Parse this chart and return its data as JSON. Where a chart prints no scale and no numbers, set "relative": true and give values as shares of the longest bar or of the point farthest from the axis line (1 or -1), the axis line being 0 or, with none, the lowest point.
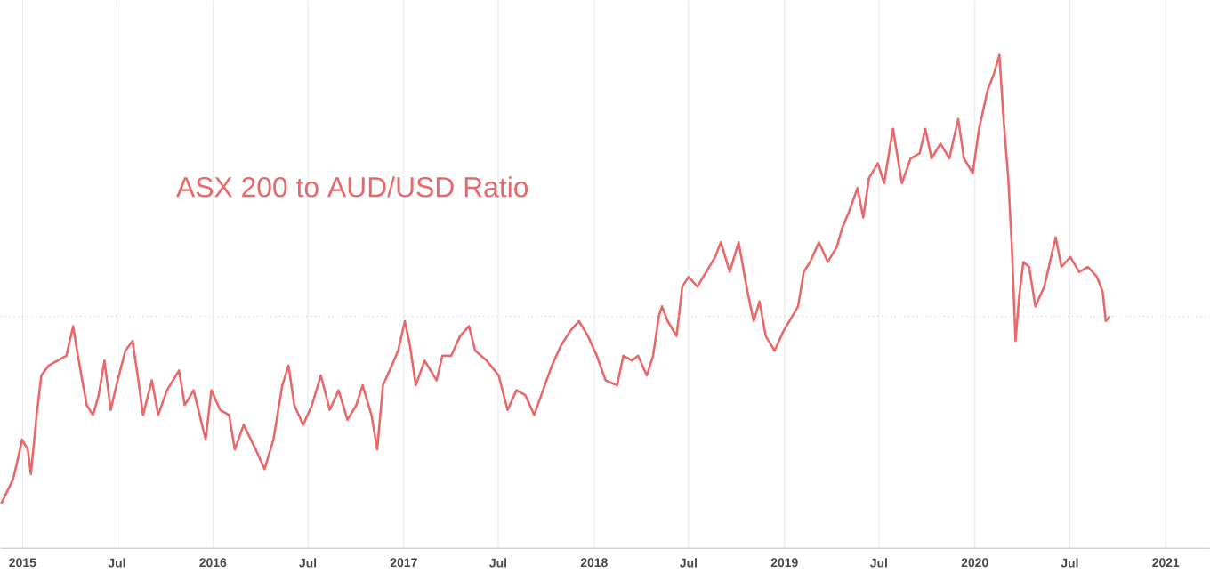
{
  "chart_data": {
    "type": "line",
    "title": "ASX 200 to AUD/USD Ratio",
    "relative": true,
    "grid": "x",
    "marker": "none",
    "line_style": "solid",
    "xlim": [
      "2014-11-20",
      "2021-03-26"
    ],
    "xticks": [
      {
        "value": "2015-01-01",
        "label": "2015"
      },
      {
        "value": "2015-07-01",
        "label": "Jul"
      },
      {
        "value": "2016-01-01",
        "label": "2016"
      },
      {
        "value": "2016-07-01",
        "label": "Jul"
      },
      {
        "value": "2017-01-01",
        "label": "2017"
      },
      {
        "value": "2017-07-01",
        "label": "Jul"
      },
      {
        "value": "2018-01-01",
        "label": "2018"
      },
      {
        "value": "2018-07-01",
        "label": "Jul"
      },
      {
        "value": "2019-01-01",
        "label": "2019"
      },
      {
        "value": "2019-07-01",
        "label": "Jul"
      },
      {
        "value": "2020-01-01",
        "label": "2020"
      },
      {
        "value": "2020-07-01",
        "label": "Jul"
      },
      {
        "value": "2021-01-01",
        "label": "2021"
      }
    ],
    "ref_lines": [
      {
        "axis": "y",
        "value": 0.47,
        "color": "#f4b4b5",
        "line_style": "dotted"
      }
    ],
    "series": [
      {
        "color": "#e8696b",
        "x": [
          "2014-11-21",
          "2014-12-14",
          "2014-12-25",
          "2014-12-31",
          "2015-01-11",
          "2015-01-17",
          "2015-01-28",
          "2015-02-06",
          "2015-02-20",
          "2015-03-09",
          "2015-03-26",
          "2015-04-08",
          "2015-04-17",
          "2015-05-04",
          "2015-05-16",
          "2015-05-27",
          "2015-06-07",
          "2015-06-19",
          "2015-06-30",
          "2015-07-17",
          "2015-07-31",
          "2015-08-11",
          "2015-08-20",
          "2015-09-06",
          "2015-09-18",
          "2015-10-05",
          "2015-10-28",
          "2015-11-08",
          "2015-11-25",
          "2015-12-18",
          "2015-12-29",
          "2016-01-15",
          "2016-02-01",
          "2016-02-12",
          "2016-02-29",
          "2016-03-23",
          "2016-04-09",
          "2016-04-26",
          "2016-05-13",
          "2016-05-25",
          "2016-06-05",
          "2016-06-22",
          "2016-07-09",
          "2016-07-26",
          "2016-08-12",
          "2016-08-29",
          "2016-09-15",
          "2016-10-02",
          "2016-10-14",
          "2016-10-31",
          "2016-11-11",
          "2016-11-22",
          "2016-12-09",
          "2016-12-21",
          "2017-01-03",
          "2017-01-13",
          "2017-01-24",
          "2017-02-10",
          "2017-03-05",
          "2017-03-16",
          "2017-04-02",
          "2017-04-19",
          "2017-05-06",
          "2017-05-18",
          "2017-06-09",
          "2017-07-02",
          "2017-07-19",
          "2017-08-05",
          "2017-08-22",
          "2017-09-08",
          "2017-09-25",
          "2017-10-12",
          "2017-10-29",
          "2017-11-16",
          "2017-12-03",
          "2017-12-20",
          "2018-01-06",
          "2018-01-23",
          "2018-02-14",
          "2018-02-26",
          "2018-03-15",
          "2018-03-26",
          "2018-04-12",
          "2018-04-24",
          "2018-05-05",
          "2018-05-11",
          "2018-05-22",
          "2018-06-08",
          "2018-06-19",
          "2018-07-01",
          "2018-07-18",
          "2018-08-04",
          "2018-08-21",
          "2018-09-01",
          "2018-09-18",
          "2018-10-05",
          "2018-10-22",
          "2018-11-03",
          "2018-11-14",
          "2018-11-26",
          "2018-12-13",
          "2018-12-30",
          "2019-01-16",
          "2019-01-27",
          "2019-02-07",
          "2019-02-19",
          "2019-03-08",
          "2019-03-25",
          "2019-04-11",
          "2019-04-22",
          "2019-05-04",
          "2019-05-21",
          "2019-06-01",
          "2019-06-12",
          "2019-06-29",
          "2019-07-11",
          "2019-07-28",
          "2019-08-14",
          "2019-08-31",
          "2019-09-17",
          "2019-09-28",
          "2019-10-10",
          "2019-10-27",
          "2019-11-13",
          "2019-11-30",
          "2019-12-11",
          "2019-12-28",
          "2020-01-09",
          "2020-01-26",
          "2020-02-06",
          "2020-02-17",
          "2020-02-25",
          "2020-03-05",
          "2020-03-12",
          "2020-03-19",
          "2020-03-26",
          "2020-04-03",
          "2020-04-14",
          "2020-04-26",
          "2020-05-13",
          "2020-05-24",
          "2020-06-04",
          "2020-06-15",
          "2020-07-02",
          "2020-07-19",
          "2020-08-05",
          "2020-08-22",
          "2020-09-02",
          "2020-09-08",
          "2020-09-16"
        ],
        "values": [
          0.09,
          0.14,
          0.19,
          0.22,
          0.2,
          0.15,
          0.27,
          0.35,
          0.37,
          0.38,
          0.39,
          0.45,
          0.39,
          0.29,
          0.27,
          0.31,
          0.38,
          0.28,
          0.33,
          0.4,
          0.42,
          0.34,
          0.27,
          0.34,
          0.27,
          0.32,
          0.36,
          0.29,
          0.32,
          0.22,
          0.32,
          0.28,
          0.27,
          0.2,
          0.25,
          0.2,
          0.16,
          0.22,
          0.33,
          0.37,
          0.29,
          0.25,
          0.29,
          0.35,
          0.28,
          0.32,
          0.26,
          0.29,
          0.33,
          0.27,
          0.2,
          0.33,
          0.37,
          0.4,
          0.46,
          0.41,
          0.33,
          0.38,
          0.34,
          0.39,
          0.39,
          0.43,
          0.45,
          0.4,
          0.38,
          0.35,
          0.28,
          0.32,
          0.31,
          0.27,
          0.32,
          0.37,
          0.41,
          0.44,
          0.46,
          0.43,
          0.39,
          0.34,
          0.33,
          0.39,
          0.38,
          0.39,
          0.35,
          0.39,
          0.47,
          0.49,
          0.46,
          0.43,
          0.53,
          0.55,
          0.53,
          0.56,
          0.59,
          0.62,
          0.56,
          0.62,
          0.52,
          0.46,
          0.5,
          0.43,
          0.4,
          0.44,
          0.47,
          0.49,
          0.56,
          0.58,
          0.62,
          0.58,
          0.61,
          0.65,
          0.68,
          0.73,
          0.67,
          0.75,
          0.78,
          0.74,
          0.85,
          0.74,
          0.79,
          0.8,
          0.85,
          0.79,
          0.82,
          0.79,
          0.87,
          0.79,
          0.76,
          0.85,
          0.93,
          0.96,
          1,
          0.87,
          0.75,
          0.61,
          0.42,
          0.51,
          0.58,
          0.57,
          0.49,
          0.53,
          0.58,
          0.63,
          0.57,
          0.59,
          0.56,
          0.57,
          0.55,
          0.52,
          0.46,
          0.47
        ]
      }
    ]
  }
}
